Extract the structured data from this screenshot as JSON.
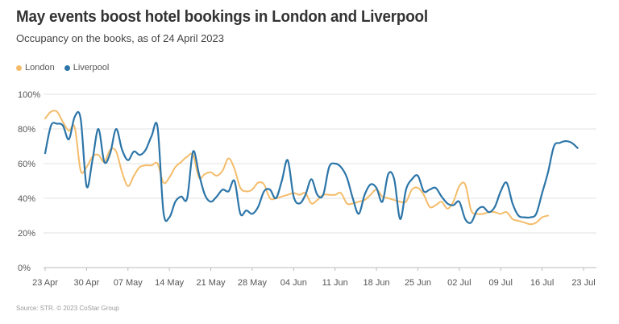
{
  "header": {
    "title": "May events boost hotel bookings in London and Liverpool",
    "subtitle": "Occupancy on the books, as of 24 April 2023"
  },
  "source": "Source: STR. © 2023 CoStar Group",
  "colors": {
    "London": "#F4BC6A",
    "Liverpool": "#2C75A8",
    "gridline": "#e3e3e3",
    "axis": "#bbbbbb"
  },
  "chart_data": {
    "type": "line",
    "title": "May events boost hotel bookings in London and Liverpool",
    "subtitle": "Occupancy on the books, as of 24 April 2023",
    "xlabel": "",
    "ylabel": "",
    "x_start": "2023-04-23",
    "x_ticks": [
      "23 Apr",
      "30 Apr",
      "07 May",
      "14 May",
      "21 May",
      "28 May",
      "04 Jun",
      "11 Jun",
      "18 Jun",
      "25 Jun",
      "02 Jul",
      "09 Jul",
      "16 Jul",
      "23 Jul"
    ],
    "y_ticks": [
      "0%",
      "20%",
      "40%",
      "60%",
      "80%",
      "100%"
    ],
    "ylim": [
      0,
      100
    ],
    "grid": "horizontal",
    "legend_position": "top-left",
    "series": [
      {
        "name": "London",
        "values": [
          86,
          90,
          90,
          84,
          79,
          81,
          56,
          58,
          64,
          65,
          61,
          68,
          67,
          55,
          47,
          53,
          58,
          59,
          59,
          60,
          49,
          52,
          58,
          61,
          64,
          65,
          52,
          54,
          55,
          53,
          56,
          63,
          57,
          46,
          44,
          45,
          49,
          48,
          40,
          40,
          41,
          42,
          43,
          42,
          43,
          37,
          39,
          42,
          42,
          42,
          43,
          37,
          37,
          38,
          39,
          42,
          45,
          41,
          40,
          39,
          38,
          38,
          45,
          46,
          42,
          35,
          36,
          38,
          34,
          38,
          47,
          48,
          33,
          31,
          31,
          32,
          32,
          31,
          32,
          28,
          27,
          26,
          25,
          26,
          29,
          30
        ]
      },
      {
        "name": "Liverpool",
        "values": [
          66,
          82,
          83,
          82,
          74,
          87,
          86,
          47,
          62,
          80,
          61,
          66,
          80,
          68,
          62,
          67,
          65,
          68,
          76,
          81,
          32,
          29,
          38,
          41,
          40,
          67,
          54,
          42,
          38,
          41,
          45,
          44,
          50,
          31,
          33,
          31,
          35,
          44,
          45,
          40,
          50,
          62,
          41,
          37,
          42,
          51,
          42,
          42,
          58,
          60,
          58,
          52,
          40,
          31,
          42,
          48,
          46,
          38,
          54,
          51,
          28,
          45,
          51,
          53,
          44,
          45,
          46,
          41,
          37,
          36,
          38,
          28,
          26,
          33,
          35,
          32,
          35,
          44,
          49,
          37,
          30,
          29,
          29,
          31,
          43,
          55,
          70,
          72,
          73,
          72,
          69
        ]
      }
    ]
  }
}
